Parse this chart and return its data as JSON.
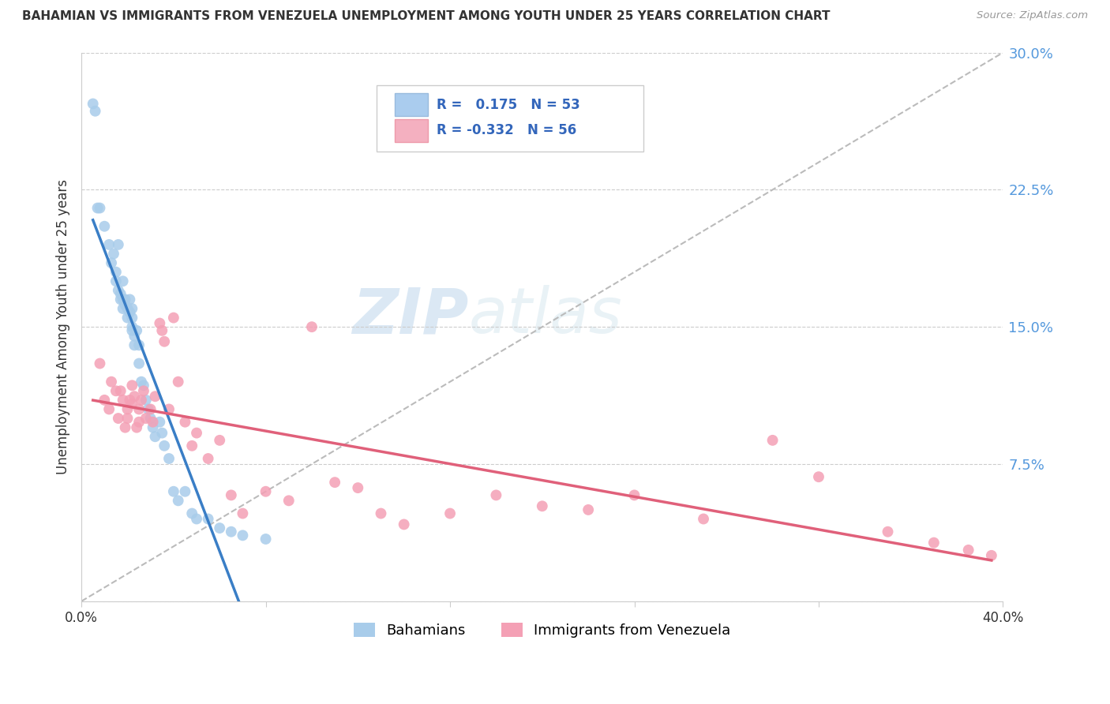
{
  "title": "BAHAMIAN VS IMMIGRANTS FROM VENEZUELA UNEMPLOYMENT AMONG YOUTH UNDER 25 YEARS CORRELATION CHART",
  "source": "Source: ZipAtlas.com",
  "ylabel": "Unemployment Among Youth under 25 years",
  "x_min": 0.0,
  "x_max": 0.4,
  "y_min": 0.0,
  "y_max": 0.3,
  "x_ticks": [
    0.0,
    0.08,
    0.16,
    0.24,
    0.32,
    0.4
  ],
  "y_ticks_right": [
    0.0,
    0.075,
    0.15,
    0.225,
    0.3
  ],
  "y_tick_labels_right": [
    "",
    "7.5%",
    "15.0%",
    "22.5%",
    "30.0%"
  ],
  "bahamian_color": "#A8CCEA",
  "venezuela_color": "#F4A0B5",
  "bahamian_line_color": "#3A7EC6",
  "venezuela_line_color": "#E0607A",
  "diagonal_color": "#BBBBBB",
  "watermark_zip": "ZIP",
  "watermark_atlas": "atlas",
  "bahamians_label": "Bahamians",
  "venezuela_label": "Immigrants from Venezuela",
  "bahamian_x": [
    0.005,
    0.006,
    0.007,
    0.008,
    0.01,
    0.012,
    0.013,
    0.014,
    0.015,
    0.015,
    0.016,
    0.016,
    0.017,
    0.017,
    0.018,
    0.018,
    0.018,
    0.019,
    0.019,
    0.02,
    0.02,
    0.021,
    0.021,
    0.022,
    0.022,
    0.022,
    0.022,
    0.023,
    0.023,
    0.024,
    0.025,
    0.025,
    0.026,
    0.027,
    0.028,
    0.029,
    0.03,
    0.031,
    0.032,
    0.034,
    0.035,
    0.036,
    0.038,
    0.04,
    0.042,
    0.045,
    0.048,
    0.05,
    0.055,
    0.06,
    0.065,
    0.07,
    0.08
  ],
  "bahamian_y": [
    0.272,
    0.268,
    0.215,
    0.215,
    0.205,
    0.195,
    0.185,
    0.19,
    0.175,
    0.18,
    0.195,
    0.17,
    0.168,
    0.165,
    0.175,
    0.165,
    0.16,
    0.165,
    0.162,
    0.16,
    0.155,
    0.165,
    0.158,
    0.155,
    0.15,
    0.148,
    0.16,
    0.145,
    0.14,
    0.148,
    0.14,
    0.13,
    0.12,
    0.118,
    0.11,
    0.105,
    0.1,
    0.095,
    0.09,
    0.098,
    0.092,
    0.085,
    0.078,
    0.06,
    0.055,
    0.06,
    0.048,
    0.045,
    0.045,
    0.04,
    0.038,
    0.036,
    0.034
  ],
  "venezuela_x": [
    0.008,
    0.01,
    0.012,
    0.013,
    0.015,
    0.016,
    0.017,
    0.018,
    0.019,
    0.02,
    0.02,
    0.021,
    0.022,
    0.022,
    0.023,
    0.024,
    0.025,
    0.025,
    0.026,
    0.027,
    0.028,
    0.03,
    0.031,
    0.032,
    0.034,
    0.035,
    0.036,
    0.038,
    0.04,
    0.042,
    0.045,
    0.048,
    0.05,
    0.055,
    0.06,
    0.065,
    0.07,
    0.08,
    0.09,
    0.1,
    0.11,
    0.12,
    0.13,
    0.14,
    0.16,
    0.18,
    0.2,
    0.22,
    0.24,
    0.27,
    0.3,
    0.32,
    0.35,
    0.37,
    0.385,
    0.395
  ],
  "venezuela_y": [
    0.13,
    0.11,
    0.105,
    0.12,
    0.115,
    0.1,
    0.115,
    0.11,
    0.095,
    0.105,
    0.1,
    0.11,
    0.118,
    0.108,
    0.112,
    0.095,
    0.105,
    0.098,
    0.11,
    0.115,
    0.1,
    0.105,
    0.098,
    0.112,
    0.152,
    0.148,
    0.142,
    0.105,
    0.155,
    0.12,
    0.098,
    0.085,
    0.092,
    0.078,
    0.088,
    0.058,
    0.048,
    0.06,
    0.055,
    0.15,
    0.065,
    0.062,
    0.048,
    0.042,
    0.048,
    0.058,
    0.052,
    0.05,
    0.058,
    0.045,
    0.088,
    0.068,
    0.038,
    0.032,
    0.028,
    0.025
  ],
  "bah_trend_x_start": 0.005,
  "bah_trend_x_end": 0.08,
  "ven_trend_x_start": 0.005,
  "ven_trend_x_end": 0.395
}
